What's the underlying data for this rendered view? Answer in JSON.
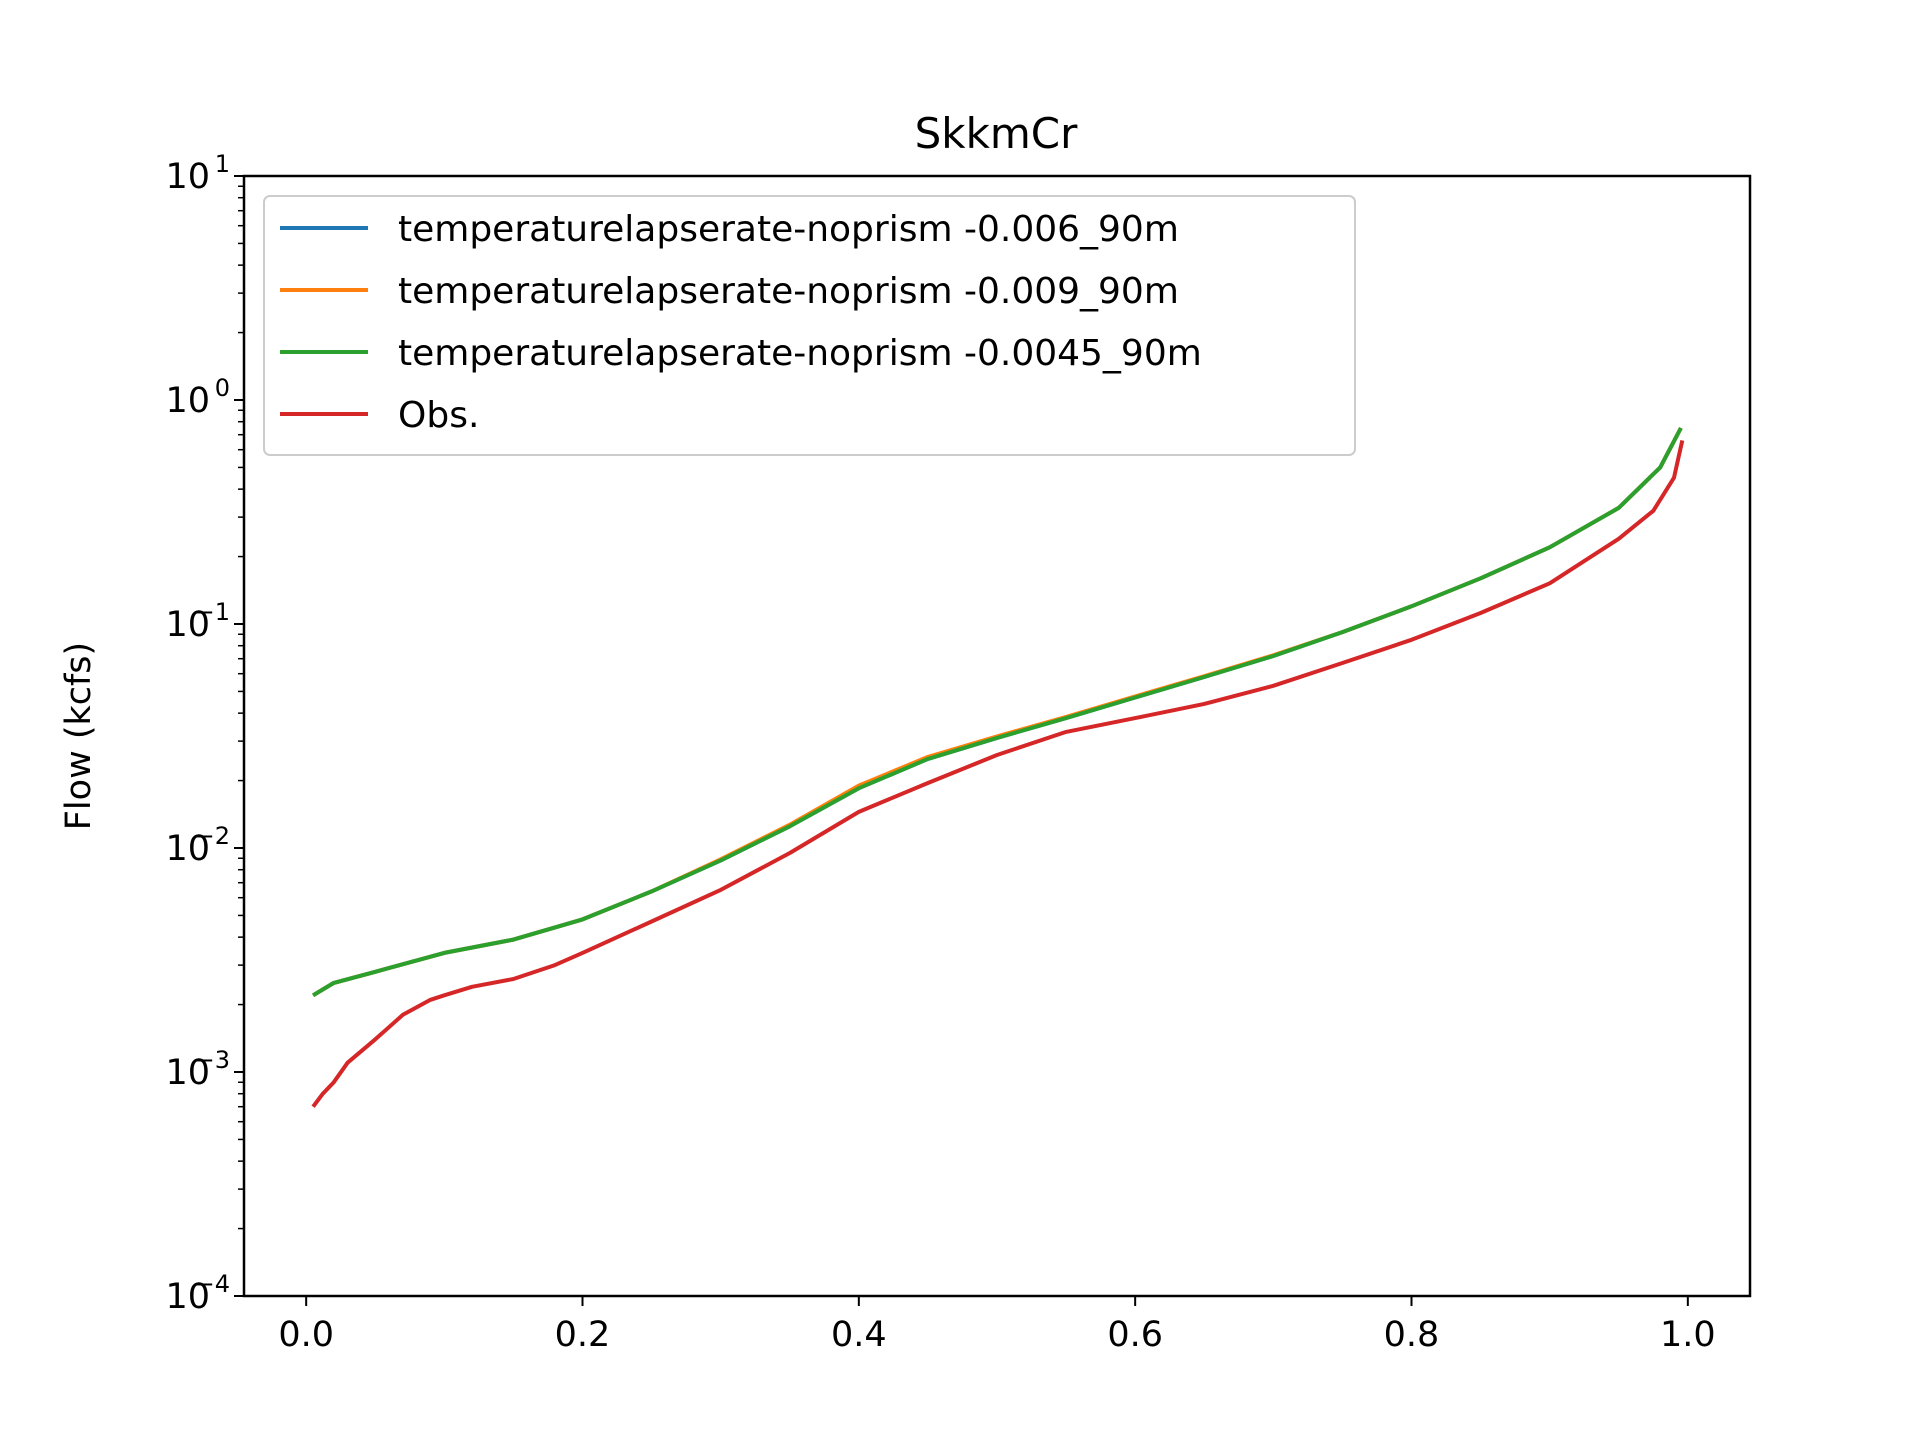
{
  "chart_data": {
    "type": "line",
    "title": "SkkmCr",
    "xlabel": "",
    "ylabel": "Flow (kcfs)",
    "xlim": [
      -0.045,
      1.045
    ],
    "ylim": [
      0.0001,
      10
    ],
    "yscale": "log",
    "grid": false,
    "legend_position": "upper-left",
    "x_ticks": [
      "0.0",
      "0.2",
      "0.4",
      "0.6",
      "0.8",
      "1.0"
    ],
    "y_ticks": [
      {
        "base": "10",
        "exp": "−4"
      },
      {
        "base": "10",
        "exp": "−3"
      },
      {
        "base": "10",
        "exp": "−2"
      },
      {
        "base": "10",
        "exp": "−1"
      },
      {
        "base": "10",
        "exp": "0"
      },
      {
        "base": "10",
        "exp": "1"
      }
    ],
    "series": [
      {
        "name": "temperaturelapserate-noprism -0.006_90m",
        "color": "#1f77b4",
        "points": [
          [
            0.005,
            0.0022
          ],
          [
            0.02,
            0.0025
          ],
          [
            0.05,
            0.0028
          ],
          [
            0.1,
            0.0034
          ],
          [
            0.15,
            0.0039
          ],
          [
            0.2,
            0.0048
          ],
          [
            0.25,
            0.0064
          ],
          [
            0.3,
            0.0088
          ],
          [
            0.35,
            0.0125
          ],
          [
            0.4,
            0.0185
          ],
          [
            0.45,
            0.025
          ],
          [
            0.5,
            0.031
          ],
          [
            0.55,
            0.038
          ],
          [
            0.6,
            0.047
          ],
          [
            0.65,
            0.058
          ],
          [
            0.7,
            0.072
          ],
          [
            0.75,
            0.092
          ],
          [
            0.8,
            0.12
          ],
          [
            0.85,
            0.16
          ],
          [
            0.9,
            0.22
          ],
          [
            0.95,
            0.33
          ],
          [
            0.98,
            0.5
          ],
          [
            0.995,
            0.75
          ]
        ]
      },
      {
        "name": "temperaturelapserate-noprism -0.009_90m",
        "color": "#ff7f0e",
        "points": [
          [
            0.005,
            0.0022
          ],
          [
            0.02,
            0.0025
          ],
          [
            0.05,
            0.0028
          ],
          [
            0.1,
            0.0034
          ],
          [
            0.15,
            0.0039
          ],
          [
            0.2,
            0.0048
          ],
          [
            0.25,
            0.0064
          ],
          [
            0.3,
            0.0089
          ],
          [
            0.35,
            0.0127
          ],
          [
            0.4,
            0.019
          ],
          [
            0.45,
            0.0255
          ],
          [
            0.5,
            0.0315
          ],
          [
            0.55,
            0.0385
          ],
          [
            0.6,
            0.0475
          ],
          [
            0.65,
            0.0585
          ],
          [
            0.7,
            0.0725
          ],
          [
            0.75,
            0.092
          ],
          [
            0.8,
            0.12
          ],
          [
            0.85,
            0.16
          ],
          [
            0.9,
            0.22
          ],
          [
            0.95,
            0.33
          ],
          [
            0.98,
            0.5
          ],
          [
            0.995,
            0.75
          ]
        ]
      },
      {
        "name": "temperaturelapserate-noprism -0.0045_90m",
        "color": "#2ca02c",
        "points": [
          [
            0.005,
            0.0022
          ],
          [
            0.02,
            0.0025
          ],
          [
            0.05,
            0.0028
          ],
          [
            0.1,
            0.0034
          ],
          [
            0.15,
            0.0039
          ],
          [
            0.2,
            0.0048
          ],
          [
            0.25,
            0.0064
          ],
          [
            0.3,
            0.0088
          ],
          [
            0.35,
            0.0125
          ],
          [
            0.4,
            0.0185
          ],
          [
            0.45,
            0.025
          ],
          [
            0.5,
            0.031
          ],
          [
            0.55,
            0.038
          ],
          [
            0.6,
            0.047
          ],
          [
            0.65,
            0.058
          ],
          [
            0.7,
            0.072
          ],
          [
            0.75,
            0.092
          ],
          [
            0.8,
            0.12
          ],
          [
            0.85,
            0.16
          ],
          [
            0.9,
            0.22
          ],
          [
            0.95,
            0.33
          ],
          [
            0.98,
            0.5
          ],
          [
            0.995,
            0.75
          ]
        ]
      },
      {
        "name": "Obs.",
        "color": "#d62728",
        "points": [
          [
            0.005,
            0.0007
          ],
          [
            0.012,
            0.0008
          ],
          [
            0.02,
            0.0009
          ],
          [
            0.03,
            0.0011
          ],
          [
            0.05,
            0.0014
          ],
          [
            0.07,
            0.0018
          ],
          [
            0.09,
            0.0021
          ],
          [
            0.1,
            0.0022
          ],
          [
            0.12,
            0.0024
          ],
          [
            0.15,
            0.0026
          ],
          [
            0.18,
            0.003
          ],
          [
            0.2,
            0.0034
          ],
          [
            0.25,
            0.0047
          ],
          [
            0.3,
            0.0065
          ],
          [
            0.35,
            0.0095
          ],
          [
            0.4,
            0.0145
          ],
          [
            0.45,
            0.0195
          ],
          [
            0.5,
            0.026
          ],
          [
            0.55,
            0.033
          ],
          [
            0.6,
            0.038
          ],
          [
            0.65,
            0.044
          ],
          [
            0.7,
            0.053
          ],
          [
            0.75,
            0.067
          ],
          [
            0.8,
            0.085
          ],
          [
            0.85,
            0.112
          ],
          [
            0.9,
            0.152
          ],
          [
            0.95,
            0.24
          ],
          [
            0.975,
            0.32
          ],
          [
            0.99,
            0.45
          ],
          [
            0.996,
            0.66
          ]
        ]
      }
    ]
  }
}
